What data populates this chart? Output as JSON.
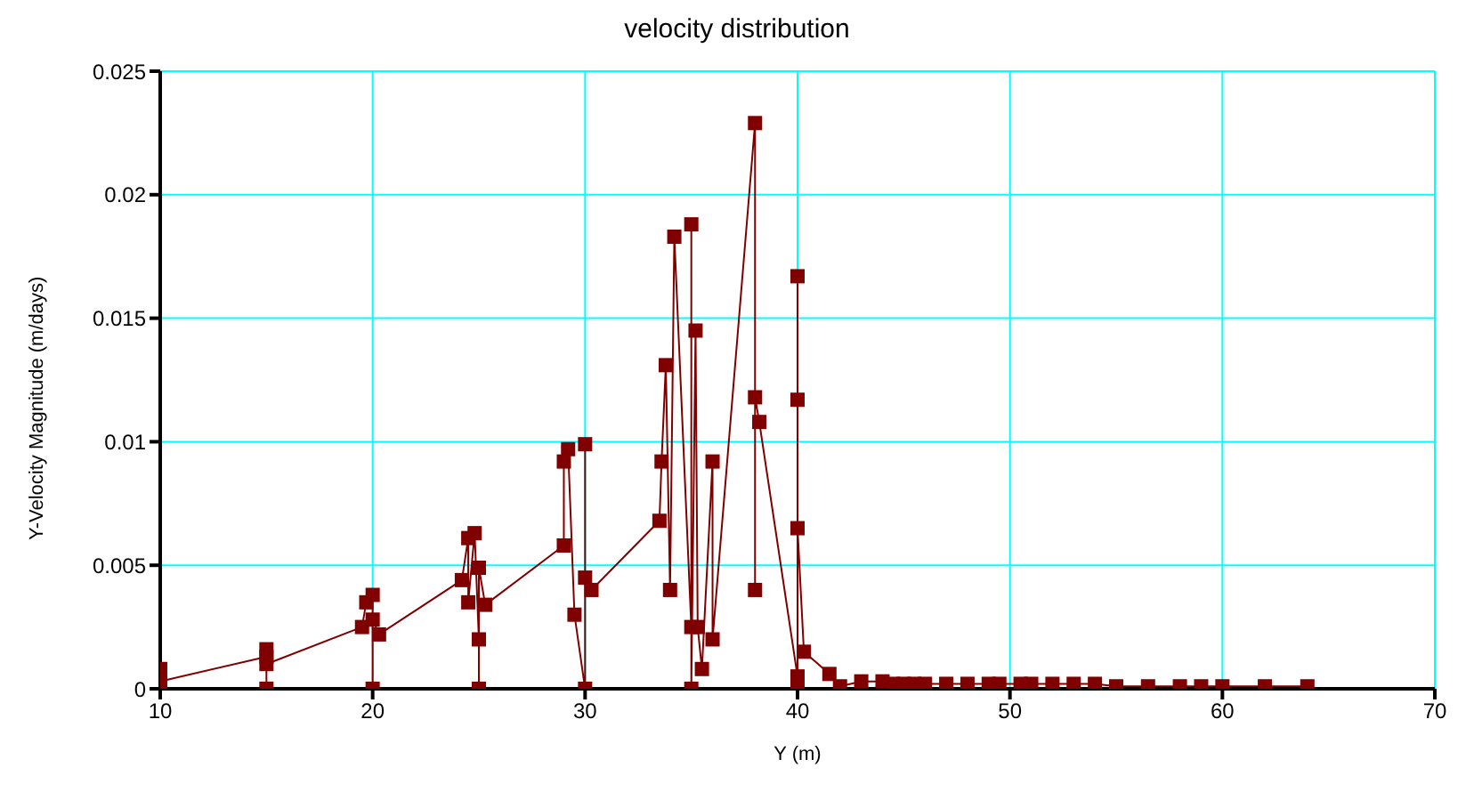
{
  "chart_data": {
    "type": "line",
    "title": "velocity distribution",
    "xlabel": "Y (m)",
    "ylabel": "Y-Velocity Magnitude (m/days)",
    "series": [
      {
        "color": "#800000",
        "x": [
          10,
          10,
          10,
          10,
          15,
          15,
          15,
          15,
          19.5,
          19.7,
          20,
          20,
          20,
          20.3,
          24.2,
          24.5,
          24.5,
          24.8,
          25,
          25,
          25,
          25.3,
          29,
          29,
          29.2,
          29.5,
          30,
          30,
          30,
          30.3,
          33.5,
          33.6,
          33.8,
          34,
          34.2,
          35,
          35,
          35,
          35.2,
          35.3,
          35.5,
          36,
          36,
          38,
          38,
          38,
          38.2,
          40,
          40,
          40,
          40,
          40,
          40.3,
          41.5,
          42,
          43,
          44,
          44.5,
          45,
          45.5,
          46,
          47,
          48,
          49,
          49.5,
          50.5,
          51,
          52,
          53,
          54,
          55,
          56.5,
          58,
          59,
          60,
          62,
          64
        ],
        "values": [
          0,
          0.0008,
          0,
          0.0003,
          0.0013,
          0.0016,
          0,
          0.001,
          0.0025,
          0.0035,
          0.0038,
          0,
          0.0028,
          0.0022,
          0.0044,
          0.0061,
          0.0035,
          0.0063,
          0.002,
          0,
          0.0049,
          0.0034,
          0.0058,
          0.0092,
          0.0097,
          0.003,
          0,
          0.0099,
          0.0045,
          0.004,
          0.0068,
          0.0092,
          0.0131,
          0.004,
          0.0183,
          0.0025,
          0.0188,
          0,
          0.0145,
          0.0025,
          0.0008,
          0.0092,
          0.002,
          0.0229,
          0.004,
          0.0118,
          0.0108,
          0.0005,
          0.0167,
          0,
          0.0117,
          0.0065,
          0.0015,
          0.0006,
          0.0001,
          0.0003,
          0.0003,
          0.0002,
          0.0002,
          0.0002,
          0.0002,
          0.0002,
          0.0002,
          0.0002,
          0.0002,
          0.0002,
          0.0002,
          0.0002,
          0.0002,
          0.0002,
          0.0001,
          0.0001,
          0.0001,
          0.0001,
          0.0001,
          0.0001,
          0.0001
        ]
      }
    ],
    "xlim": [
      10,
      70
    ],
    "xticks": [
      10,
      20,
      30,
      40,
      50,
      60,
      70
    ],
    "ylim": [
      0,
      0.025
    ],
    "yticks": [
      0,
      0.005,
      0.01,
      0.015,
      0.02,
      0.025
    ],
    "grid": true,
    "marker": "square",
    "line_style": "solid",
    "legend": false
  }
}
